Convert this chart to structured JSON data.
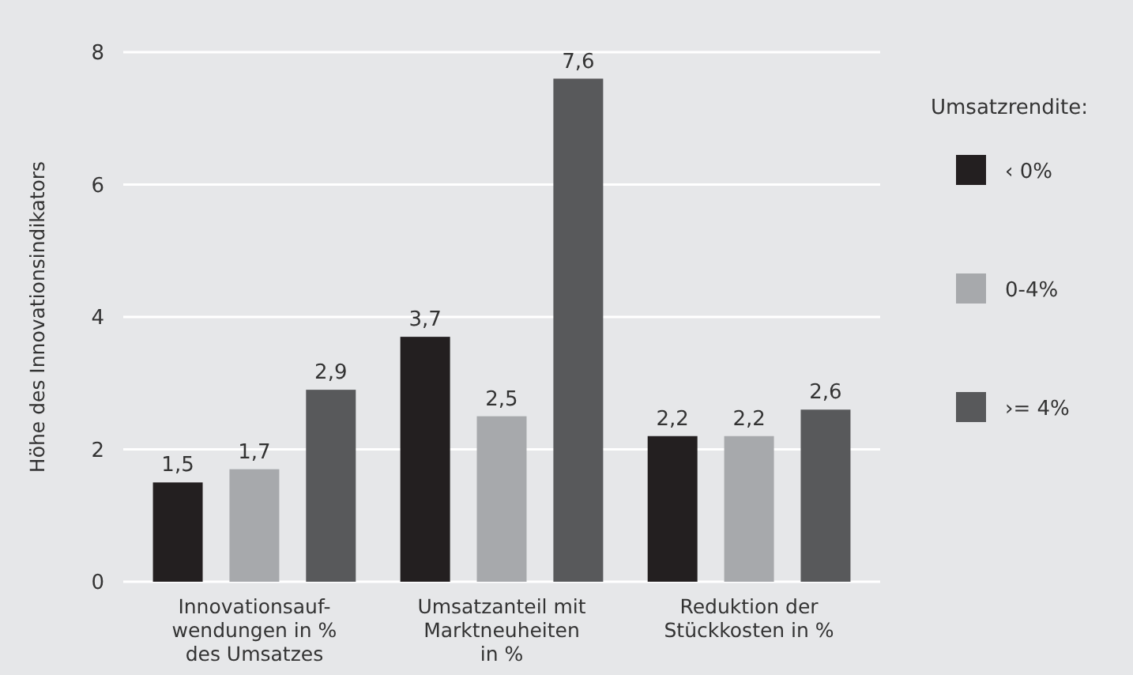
{
  "chart_data": {
    "type": "bar",
    "ylabel": "Höhe des Innovationsindikators",
    "legend_title": "Umsatzrendite:",
    "categories": [
      "Innovationsauf-\nwendungen in %\ndes Umsatzes",
      "Umsatzanteil mit\nMarktneuheiten\nin %",
      "Reduktion der\nStückkosten in %"
    ],
    "series": [
      {
        "name": "‹ 0%",
        "color": "#231f20",
        "values": [
          1.5,
          3.7,
          2.2
        ],
        "value_labels": [
          "1,5",
          "3,7",
          "2,2"
        ]
      },
      {
        "name": "0-4%",
        "color": "#a7a9ac",
        "values": [
          1.7,
          2.5,
          2.2
        ],
        "value_labels": [
          "1,7",
          "2,5",
          "2,2"
        ]
      },
      {
        "name": "›= 4%",
        "color": "#58595b",
        "values": [
          2.9,
          7.6,
          2.6
        ],
        "value_labels": [
          "2,9",
          "7,6",
          "2,6"
        ]
      }
    ],
    "ylim": [
      0,
      8
    ],
    "yticks": [
      0,
      2,
      4,
      6,
      8
    ],
    "grid": "y",
    "legend": "right"
  }
}
